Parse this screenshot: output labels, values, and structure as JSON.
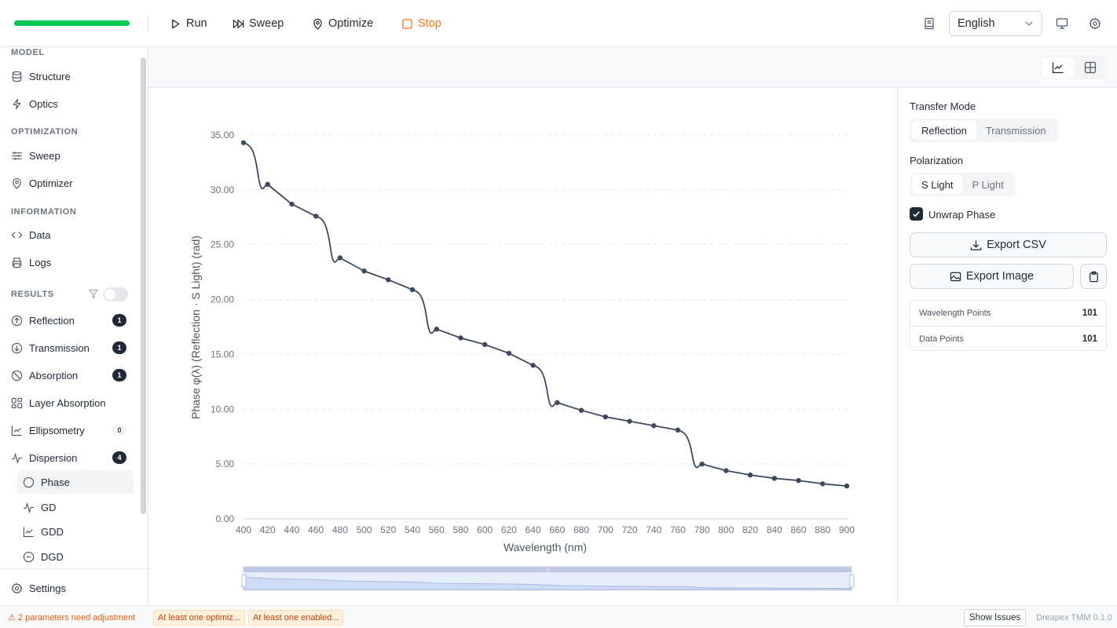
{
  "toolbar": {
    "progress_color": "#00c853",
    "run_label": "Run",
    "sweep_label": "Sweep",
    "optimize_label": "Optimize",
    "stop_label": "Stop",
    "language": "English"
  },
  "sidebar": {
    "sections": {
      "model": "MODEL",
      "optimization": "OPTIMIZATION",
      "information": "INFORMATION",
      "results": "RESULTS"
    },
    "items": {
      "structure": "Structure",
      "optics": "Optics",
      "sweep": "Sweep",
      "optimizer": "Optimizer",
      "data": "Data",
      "logs": "Logs",
      "reflection": "Reflection",
      "transmission": "Transmission",
      "absorption": "Absorption",
      "layer_absorption": "Layer Absorption",
      "ellipsometry": "Ellipsometry",
      "dispersion": "Dispersion"
    },
    "badges": {
      "reflection": "1",
      "transmission": "1",
      "absorption": "1",
      "ellipsometry": "0",
      "dispersion": "4"
    },
    "sub_items": {
      "phase": "Phase",
      "gd": "GD",
      "gdd": "GDD",
      "dgd": "DGD"
    },
    "settings": "Settings"
  },
  "panel": {
    "transfer_mode_label": "Transfer Mode",
    "transfer_modes": [
      "Reflection",
      "Transmission"
    ],
    "transfer_mode_selected": "Reflection",
    "polarization_label": "Polarization",
    "polarizations": [
      "S Light",
      "P Light"
    ],
    "polarization_selected": "S Light",
    "unwrap_phase_label": "Unwrap Phase",
    "unwrap_phase_checked": true,
    "export_csv": "Export CSV",
    "export_image": "Export Image",
    "stats": [
      {
        "label": "Wavelength Points",
        "value": "101"
      },
      {
        "label": "Data Points",
        "value": "101"
      }
    ]
  },
  "statusbar": {
    "warning": "⚠ 2 parameters need adjustment",
    "chips": [
      "At least one optimiz...",
      "At least one enabled..."
    ],
    "show_issues": "Show Issues",
    "version": "Dreapex TMM 0.1.0"
  },
  "chart_data": {
    "type": "line",
    "title": "",
    "xlabel": "Wavelength (nm)",
    "ylabel": "Phase φ(λ) (Reflection · S Light) (rad)",
    "xlim": [
      400,
      900
    ],
    "ylim": [
      0,
      35
    ],
    "x_ticks": [
      "400",
      "420",
      "440",
      "460",
      "480",
      "500",
      "520",
      "540",
      "560",
      "580",
      "600",
      "620",
      "640",
      "660",
      "680",
      "700",
      "720",
      "740",
      "760",
      "780",
      "800",
      "820",
      "840",
      "860",
      "880",
      "900"
    ],
    "y_ticks": [
      "0.00",
      "5.00",
      "10.00",
      "15.00",
      "20.00",
      "25.00",
      "30.00",
      "35.00"
    ],
    "grid": "horizontal dashed",
    "line_color": "#3d4a5c",
    "series": [
      {
        "name": "Phase (Reflection · S Light)",
        "x": [
          400,
          420,
          440,
          460,
          480,
          500,
          520,
          540,
          560,
          580,
          600,
          620,
          640,
          660,
          680,
          700,
          720,
          740,
          760,
          780,
          800,
          820,
          840,
          860,
          880,
          900
        ],
        "values": [
          34.3,
          30.5,
          28.7,
          27.6,
          23.8,
          22.6,
          21.8,
          20.9,
          17.3,
          16.5,
          15.9,
          15.1,
          14.0,
          10.6,
          9.9,
          9.3,
          8.9,
          8.5,
          8.1,
          5.0,
          4.4,
          4.0,
          3.7,
          3.5,
          3.2,
          3.0
        ]
      }
    ],
    "legend": "none",
    "data_zoom": {
      "start": 400,
      "end": 900
    }
  }
}
